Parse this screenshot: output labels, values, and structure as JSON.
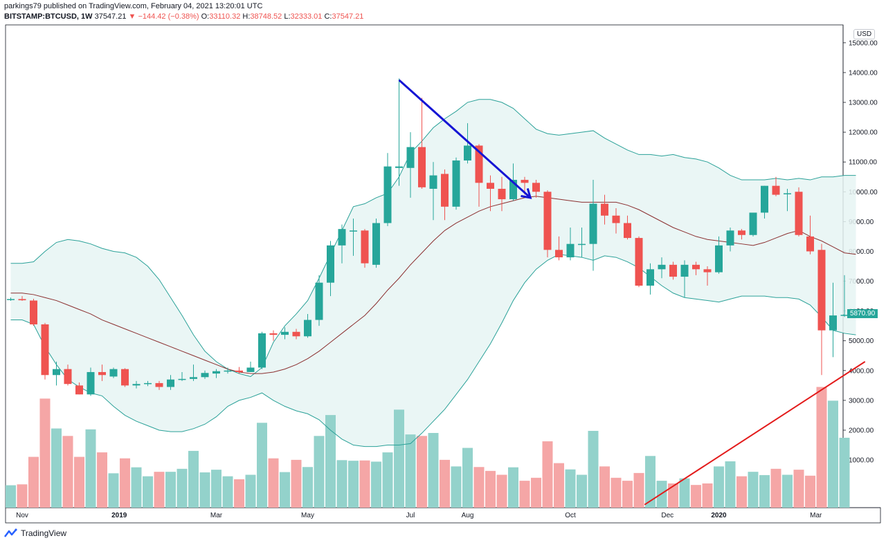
{
  "header": {
    "publisher_line": "parkings79 published on TradingView.com, February 04, 2021 13:20:01 UTC",
    "symbol": "BITSTAMP:BTCUSD, 1W",
    "last": "37547.21",
    "arrow": "▼",
    "change": "−144.42 (−0.38%)",
    "o_label": "O:",
    "o_value": "33110.32",
    "h_label": "H:",
    "h_value": "38748.52",
    "l_label": "L:",
    "l_value": "32333.01",
    "c_label": "C:",
    "c_value": "37547.21"
  },
  "currency_badge": "USD",
  "price_badge": "5870.90",
  "footer": {
    "brand": "TradingView",
    "logo_icon": "tradingview-logo-icon"
  },
  "colors": {
    "up": "#26a69a",
    "down": "#ef5350",
    "up_vol": "#93d2cb",
    "down_vol": "#f5a6a6",
    "band": "#2aa198",
    "band_fill": "#e6f5f3",
    "basis": "#8b2f2f",
    "arrow": "#1515d4",
    "trendline": "#e31b1b"
  },
  "chart_data": {
    "type": "candlestick",
    "timeframe": "1W",
    "y_axis_ticks": [
      "15000.00",
      "14000.00",
      "13000.00",
      "12000.00",
      "11000.00",
      "10000.00",
      "9000.00",
      "8000.00",
      "7000.00",
      "6000.00",
      "5000.00",
      "4000.00",
      "3000.00",
      "2000.00",
      "1000.00"
    ],
    "y_range": [
      -600,
      15600
    ],
    "x_axis_labels": [
      {
        "label": "Nov",
        "index": 1
      },
      {
        "label": "2019",
        "index": 9.5
      },
      {
        "label": "Mar",
        "index": 18
      },
      {
        "label": "May",
        "index": 26
      },
      {
        "label": "Jul",
        "index": 35
      },
      {
        "label": "Aug",
        "index": 40
      },
      {
        "label": "Oct",
        "index": 49
      },
      {
        "label": "Dec",
        "index": 57.5
      },
      {
        "label": "2020",
        "index": 62
      },
      {
        "label": "Mar",
        "index": 70.5
      }
    ],
    "candles": [
      {
        "o": 6380,
        "h": 6450,
        "l": 6340,
        "c": 6400,
        "v": 750
      },
      {
        "o": 6400,
        "h": 6500,
        "l": 6340,
        "c": 6360,
        "v": 780
      },
      {
        "o": 6350,
        "h": 6410,
        "l": 5500,
        "c": 5550,
        "v": 1700
      },
      {
        "o": 5550,
        "h": 5600,
        "l": 3700,
        "c": 3850,
        "v": 3650
      },
      {
        "o": 3850,
        "h": 4300,
        "l": 3500,
        "c": 4050,
        "v": 2650
      },
      {
        "o": 4050,
        "h": 4200,
        "l": 3500,
        "c": 3550,
        "v": 2400
      },
      {
        "o": 3500,
        "h": 3600,
        "l": 3200,
        "c": 3200,
        "v": 1700
      },
      {
        "o": 3200,
        "h": 4100,
        "l": 3150,
        "c": 3950,
        "v": 2620
      },
      {
        "o": 3950,
        "h": 4200,
        "l": 3650,
        "c": 3850,
        "v": 1850
      },
      {
        "o": 3800,
        "h": 4100,
        "l": 3750,
        "c": 4050,
        "v": 1150
      },
      {
        "o": 4050,
        "h": 4080,
        "l": 3450,
        "c": 3500,
        "v": 1650
      },
      {
        "o": 3500,
        "h": 3650,
        "l": 3400,
        "c": 3550,
        "v": 1350
      },
      {
        "o": 3550,
        "h": 3650,
        "l": 3480,
        "c": 3580,
        "v": 1050
      },
      {
        "o": 3580,
        "h": 3650,
        "l": 3350,
        "c": 3450,
        "v": 1200
      },
      {
        "o": 3450,
        "h": 3850,
        "l": 3350,
        "c": 3700,
        "v": 1200
      },
      {
        "o": 3700,
        "h": 3950,
        "l": 3650,
        "c": 3720,
        "v": 1300
      },
      {
        "o": 3720,
        "h": 4200,
        "l": 3650,
        "c": 3780,
        "v": 1900
      },
      {
        "o": 3780,
        "h": 4000,
        "l": 3720,
        "c": 3920,
        "v": 1180
      },
      {
        "o": 3900,
        "h": 4050,
        "l": 3750,
        "c": 3980,
        "v": 1270
      },
      {
        "o": 3980,
        "h": 4100,
        "l": 3900,
        "c": 4000,
        "v": 1050
      },
      {
        "o": 4000,
        "h": 4120,
        "l": 3900,
        "c": 3950,
        "v": 950
      },
      {
        "o": 3950,
        "h": 4300,
        "l": 3950,
        "c": 4100,
        "v": 1100
      },
      {
        "o": 4100,
        "h": 5300,
        "l": 4050,
        "c": 5250,
        "v": 2840
      },
      {
        "o": 5250,
        "h": 5350,
        "l": 5000,
        "c": 5200,
        "v": 1650
      },
      {
        "o": 5200,
        "h": 5450,
        "l": 5050,
        "c": 5300,
        "v": 1190
      },
      {
        "o": 5300,
        "h": 5400,
        "l": 5050,
        "c": 5150,
        "v": 1600
      },
      {
        "o": 5150,
        "h": 5900,
        "l": 5100,
        "c": 5700,
        "v": 1360
      },
      {
        "o": 5700,
        "h": 7200,
        "l": 5500,
        "c": 6950,
        "v": 2400
      },
      {
        "o": 6950,
        "h": 8350,
        "l": 6500,
        "c": 8200,
        "v": 3100
      },
      {
        "o": 8200,
        "h": 8900,
        "l": 7600,
        "c": 8750,
        "v": 1590
      },
      {
        "o": 8700,
        "h": 9100,
        "l": 7850,
        "c": 8700,
        "v": 1570
      },
      {
        "o": 8700,
        "h": 8750,
        "l": 7450,
        "c": 7600,
        "v": 1580
      },
      {
        "o": 7550,
        "h": 9100,
        "l": 7450,
        "c": 8950,
        "v": 1540
      },
      {
        "o": 8950,
        "h": 11300,
        "l": 8850,
        "c": 10850,
        "v": 1850
      },
      {
        "o": 10800,
        "h": 13800,
        "l": 10200,
        "c": 10850,
        "v": 3280
      },
      {
        "o": 10800,
        "h": 12000,
        "l": 9800,
        "c": 11500,
        "v": 2450
      },
      {
        "o": 11500,
        "h": 13150,
        "l": 10100,
        "c": 10150,
        "v": 2400
      },
      {
        "o": 10100,
        "h": 11000,
        "l": 9050,
        "c": 10550,
        "v": 2500
      },
      {
        "o": 10600,
        "h": 10750,
        "l": 9050,
        "c": 9500,
        "v": 1600
      },
      {
        "o": 9500,
        "h": 11150,
        "l": 9400,
        "c": 11050,
        "v": 1380
      },
      {
        "o": 11050,
        "h": 12300,
        "l": 10950,
        "c": 11550,
        "v": 2000
      },
      {
        "o": 11550,
        "h": 11600,
        "l": 9500,
        "c": 10300,
        "v": 1360
      },
      {
        "o": 10300,
        "h": 10550,
        "l": 9350,
        "c": 10100,
        "v": 1230
      },
      {
        "o": 10100,
        "h": 10500,
        "l": 9350,
        "c": 9750,
        "v": 1100
      },
      {
        "o": 9750,
        "h": 10950,
        "l": 9700,
        "c": 10400,
        "v": 1350
      },
      {
        "o": 10400,
        "h": 10500,
        "l": 9900,
        "c": 10300,
        "v": 900
      },
      {
        "o": 10300,
        "h": 10400,
        "l": 9800,
        "c": 10000,
        "v": 1000
      },
      {
        "o": 10000,
        "h": 10050,
        "l": 7800,
        "c": 8050,
        "v": 2220
      },
      {
        "o": 8050,
        "h": 8500,
        "l": 7700,
        "c": 7800,
        "v": 1490
      },
      {
        "o": 7800,
        "h": 8800,
        "l": 7700,
        "c": 8250,
        "v": 1280
      },
      {
        "o": 8250,
        "h": 8800,
        "l": 7800,
        "c": 8250,
        "v": 1100
      },
      {
        "o": 8250,
        "h": 10400,
        "l": 7350,
        "c": 9600,
        "v": 2570
      },
      {
        "o": 9600,
        "h": 9900,
        "l": 8900,
        "c": 9200,
        "v": 1380
      },
      {
        "o": 9200,
        "h": 9450,
        "l": 8600,
        "c": 8950,
        "v": 1000
      },
      {
        "o": 8950,
        "h": 9200,
        "l": 8400,
        "c": 8450,
        "v": 900
      },
      {
        "o": 8450,
        "h": 8500,
        "l": 6800,
        "c": 6850,
        "v": 1160
      },
      {
        "o": 6850,
        "h": 7600,
        "l": 6550,
        "c": 7400,
        "v": 1730
      },
      {
        "o": 7400,
        "h": 7800,
        "l": 7100,
        "c": 7550,
        "v": 900
      },
      {
        "o": 7550,
        "h": 7650,
        "l": 7050,
        "c": 7150,
        "v": 810
      },
      {
        "o": 7150,
        "h": 7700,
        "l": 6450,
        "c": 7550,
        "v": 980
      },
      {
        "o": 7550,
        "h": 7650,
        "l": 7200,
        "c": 7400,
        "v": 760
      },
      {
        "o": 7400,
        "h": 7500,
        "l": 6850,
        "c": 7300,
        "v": 810
      },
      {
        "o": 7300,
        "h": 8500,
        "l": 7250,
        "c": 8200,
        "v": 1380
      },
      {
        "o": 8200,
        "h": 8800,
        "l": 8000,
        "c": 8700,
        "v": 1550
      },
      {
        "o": 8700,
        "h": 8750,
        "l": 8400,
        "c": 8550,
        "v": 1050
      },
      {
        "o": 8550,
        "h": 9200,
        "l": 8500,
        "c": 9300,
        "v": 1200
      },
      {
        "o": 9300,
        "h": 10200,
        "l": 9100,
        "c": 10200,
        "v": 1090
      },
      {
        "o": 10200,
        "h": 10500,
        "l": 9850,
        "c": 9900,
        "v": 1300
      },
      {
        "o": 9950,
        "h": 10100,
        "l": 9350,
        "c": 9950,
        "v": 1100
      },
      {
        "o": 10000,
        "h": 10150,
        "l": 8500,
        "c": 8550,
        "v": 1270
      },
      {
        "o": 8500,
        "h": 9200,
        "l": 7900,
        "c": 8000,
        "v": 1070
      },
      {
        "o": 8050,
        "h": 8250,
        "l": 3850,
        "c": 5350,
        "v": 4040
      },
      {
        "o": 5350,
        "h": 6950,
        "l": 4450,
        "c": 5850,
        "v": 3580
      },
      {
        "o": 5850,
        "h": 7200,
        "l": 5800,
        "c": 5870,
        "v": 2340
      }
    ],
    "bollinger": {
      "upper": [
        7600,
        7600,
        7650,
        8000,
        8300,
        8400,
        8350,
        8250,
        8100,
        8000,
        7950,
        7800,
        7500,
        7050,
        6450,
        5850,
        5200,
        4650,
        4300,
        4050,
        3900,
        3800,
        4100,
        4950,
        5500,
        5900,
        6350,
        7100,
        7900,
        8700,
        9500,
        9600,
        9800,
        9950,
        10500,
        11300,
        11700,
        12150,
        12450,
        12700,
        13000,
        13100,
        13100,
        13000,
        12800,
        12450,
        12100,
        11950,
        11900,
        11950,
        12000,
        12050,
        11800,
        11600,
        11400,
        11250,
        11250,
        11200,
        11250,
        11150,
        11100,
        11000,
        10800,
        10550,
        10400,
        10400,
        10400,
        10450,
        10400,
        10450,
        10400,
        10500,
        10500,
        10550,
        10550
      ],
      "basis": [
        6600,
        6600,
        6550,
        6450,
        6350,
        6200,
        6050,
        5900,
        5700,
        5550,
        5400,
        5250,
        5100,
        4950,
        4800,
        4650,
        4500,
        4350,
        4200,
        4050,
        3950,
        3900,
        3900,
        3950,
        4050,
        4200,
        4400,
        4650,
        4950,
        5250,
        5550,
        5850,
        6250,
        6700,
        7100,
        7550,
        7950,
        8350,
        8700,
        8950,
        9150,
        9350,
        9500,
        9600,
        9700,
        9800,
        9850,
        9800,
        9750,
        9700,
        9650,
        9650,
        9650,
        9650,
        9550,
        9400,
        9200,
        9000,
        8800,
        8650,
        8500,
        8400,
        8350,
        8300,
        8250,
        8200,
        8300,
        8450,
        8600,
        8700,
        8500,
        8350,
        8150,
        7950,
        7900
      ],
      "lower": [
        5700,
        5700,
        5550,
        4800,
        4200,
        3700,
        3450,
        3250,
        3150,
        2800,
        2500,
        2300,
        2150,
        2000,
        1950,
        1950,
        2050,
        2200,
        2450,
        2800,
        3000,
        3100,
        3250,
        3000,
        2800,
        2650,
        2550,
        2350,
        2000,
        1700,
        1500,
        1450,
        1450,
        1500,
        1500,
        1550,
        1900,
        2300,
        2700,
        3200,
        3700,
        4300,
        4900,
        5600,
        6350,
        6950,
        7400,
        7700,
        7900,
        7850,
        7800,
        7700,
        7850,
        7800,
        7650,
        7450,
        7150,
        6850,
        6600,
        6450,
        6400,
        6350,
        6300,
        6400,
        6500,
        6500,
        6500,
        6450,
        6450,
        6400,
        6200,
        5800,
        5350,
        5250,
        5200
      ]
    },
    "drawings": [
      {
        "type": "arrow",
        "from": {
          "index": 34,
          "price": 13750
        },
        "to": {
          "index": 45.5,
          "price": 9800
        }
      },
      {
        "type": "trendline",
        "from": {
          "index": 55.5,
          "price": -500
        },
        "to": {
          "index": 74.8,
          "price": 4300
        }
      }
    ],
    "last_price": 5870.9
  }
}
